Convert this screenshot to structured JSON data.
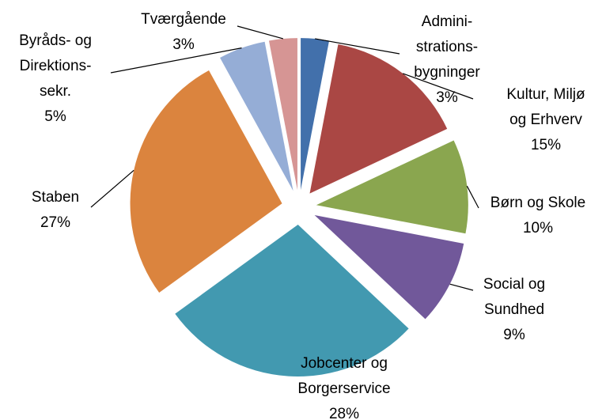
{
  "chart_data": {
    "type": "pie",
    "categories": [
      "Admini-\nstrations-\nbygninger",
      "Kultur, Miljø\nog Erhverv",
      "Børn og Skole",
      "Social og\nSundhed",
      "Jobcenter og\nBorgerservice",
      "Staben",
      "Byråds- og\nDirektions-\nsekr.",
      "Tværgående"
    ],
    "values": [
      3,
      15,
      10,
      9,
      28,
      27,
      5,
      3
    ],
    "value_labels": [
      "3%",
      "15%",
      "10%",
      "9%",
      "28%",
      "27%",
      "5%",
      "3%"
    ],
    "colors": [
      "#4270ab",
      "#aa4744",
      "#8aa64f",
      "#71589a",
      "#4299b0",
      "#db843e",
      "#95add6",
      "#d69594"
    ]
  }
}
